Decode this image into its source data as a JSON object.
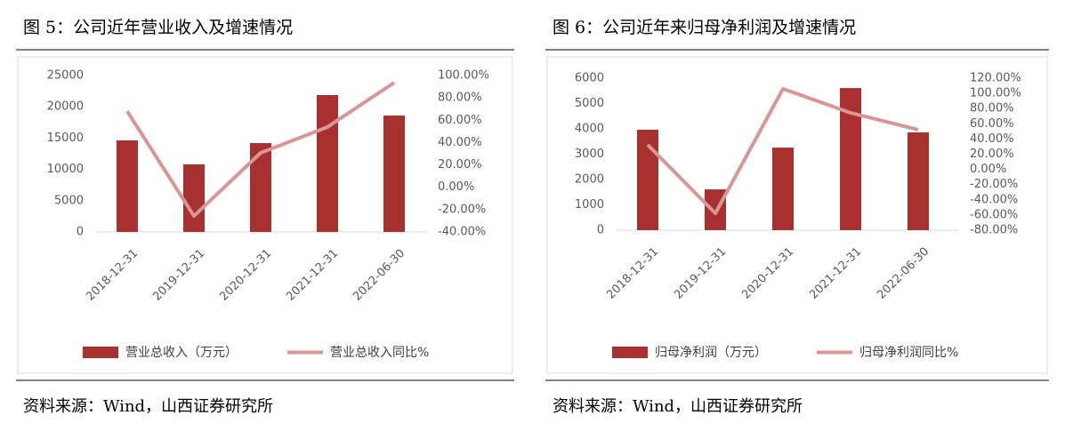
{
  "chart_data": [
    {
      "type": "combo",
      "title": "图 5：公司近年营业收入及增速情况",
      "categories": [
        "2018-12-31",
        "2019-12-31",
        "2020-12-31",
        "2021-12-31",
        "2022-06-30"
      ],
      "series": [
        {
          "name": "营业总收入（万元）",
          "type": "bar",
          "color": "#a8312f",
          "values": [
            14630,
            10800,
            14200,
            21870,
            18600
          ]
        },
        {
          "name": "营业总收入同比%",
          "type": "line",
          "axis": "y2",
          "color": "#d99694",
          "values": [
            68,
            -25.7,
            30.8,
            53.9,
            93.6
          ]
        }
      ],
      "ylim": [
        0,
        25000
      ],
      "yticks": [
        0,
        5000,
        10000,
        15000,
        20000,
        25000
      ],
      "y2lim": [
        -40,
        100
      ],
      "y2ticks": [
        {
          "value": -40,
          "label": "-40.00%"
        },
        {
          "value": -20,
          "label": "-20.00%"
        },
        {
          "value": 0,
          "label": "0.00%"
        },
        {
          "value": 20,
          "label": "20.00%"
        },
        {
          "value": 40,
          "label": "40.00%"
        },
        {
          "value": 60,
          "label": "60.00%"
        },
        {
          "value": 80,
          "label": "80.00%"
        },
        {
          "value": 100,
          "label": "100.00%"
        }
      ],
      "source": "资料来源：Wind，山西证券研究所"
    },
    {
      "type": "combo",
      "title": "图 6：公司近年来归母净利润及增速情况",
      "categories": [
        "2018-12-31",
        "2019-12-31",
        "2020-12-31",
        "2021-12-31",
        "2022-06-30"
      ],
      "series": [
        {
          "name": "归母净利润（万元）",
          "type": "bar",
          "color": "#a8312f",
          "values": [
            3965,
            1610,
            3260,
            5610,
            3860
          ]
        },
        {
          "name": "归母净利润同比%",
          "type": "line",
          "axis": "y2",
          "color": "#d99694",
          "values": [
            32.3,
            -57.8,
            106,
            74.4,
            52.2
          ]
        }
      ],
      "ylim": [
        0,
        6000
      ],
      "yticks": [
        0,
        1000,
        2000,
        3000,
        4000,
        5000,
        6000
      ],
      "y2lim": [
        -80,
        120
      ],
      "y2ticks": [
        {
          "value": -80,
          "label": "-80.00%"
        },
        {
          "value": -60,
          "label": "-60.00%"
        },
        {
          "value": -40,
          "label": "-40.00%"
        },
        {
          "value": -20,
          "label": "-20.00%"
        },
        {
          "value": 0,
          "label": "0.00%"
        },
        {
          "value": 20,
          "label": "20.00%"
        },
        {
          "value": 40,
          "label": "40.00%"
        },
        {
          "value": 60,
          "label": "60.00%"
        },
        {
          "value": 80,
          "label": "80.00%"
        },
        {
          "value": 100,
          "label": "100.00%"
        },
        {
          "value": 120,
          "label": "120.00%"
        }
      ],
      "source": "资料来源：Wind，山西证券研究所"
    }
  ]
}
